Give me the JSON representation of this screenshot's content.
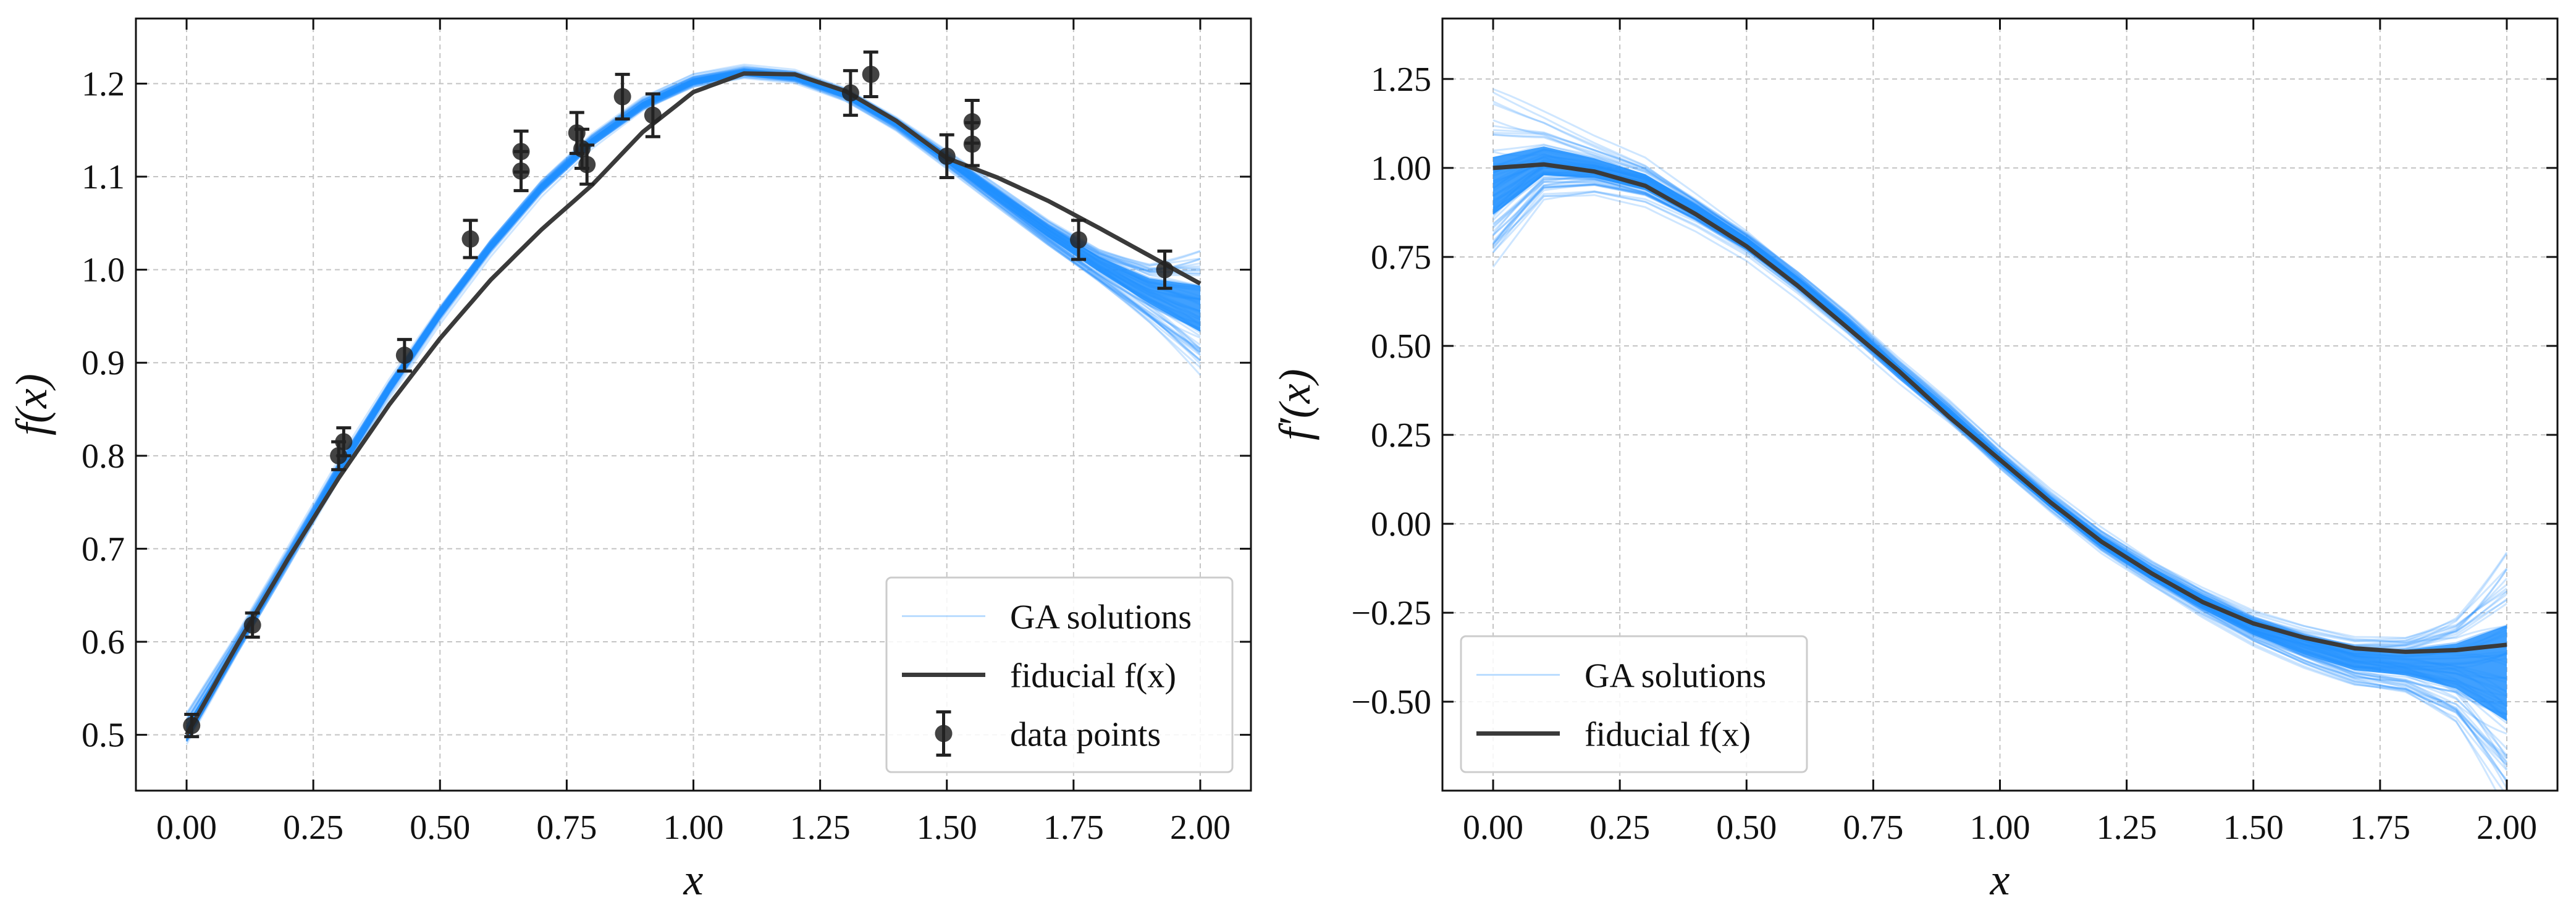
{
  "chart_data": [
    {
      "id": "left",
      "type": "line+scatter",
      "xlabel": "x",
      "ylabel": "f(x)",
      "xlim": [
        -0.1,
        2.1
      ],
      "ylim": [
        0.44,
        1.27
      ],
      "xticks": [
        0.0,
        0.25,
        0.5,
        0.75,
        1.0,
        1.25,
        1.5,
        1.75,
        2.0
      ],
      "xtick_labels": [
        "0.00",
        "0.25",
        "0.50",
        "0.75",
        "1.00",
        "1.25",
        "1.50",
        "1.75",
        "2.00"
      ],
      "yticks": [
        0.5,
        0.6,
        0.7,
        0.8,
        0.9,
        1.0,
        1.1,
        1.2
      ],
      "ytick_labels": [
        "0.5",
        "0.6",
        "0.7",
        "0.8",
        "0.9",
        "1.0",
        "1.1",
        "1.2"
      ],
      "grid": true,
      "legend_location": "lower-right",
      "legend": [
        {
          "label": "GA solutions",
          "style": "thin-light-blue-line"
        },
        {
          "label": "fiducial f(x)",
          "style": "thick-dark-line"
        },
        {
          "label": "data points",
          "style": "errorbar-marker"
        }
      ],
      "fiducial": {
        "name": "fiducial f(x)",
        "x": [
          0.0,
          0.1,
          0.2,
          0.3,
          0.4,
          0.5,
          0.6,
          0.7,
          0.8,
          0.9,
          1.0,
          1.1,
          1.2,
          1.3,
          1.4,
          1.5,
          1.6,
          1.7,
          1.8,
          1.9,
          2.0
        ],
        "y": [
          0.5,
          0.597,
          0.689,
          0.776,
          0.855,
          0.926,
          0.989,
          1.043,
          1.091,
          1.148,
          1.191,
          1.211,
          1.21,
          1.192,
          1.16,
          1.12,
          1.099,
          1.074,
          1.045,
          1.015,
          0.985
        ]
      },
      "ga_band": {
        "name": "GA solutions",
        "x": [
          0.0,
          0.1,
          0.2,
          0.3,
          0.4,
          0.5,
          0.6,
          0.7,
          0.8,
          0.9,
          1.0,
          1.1,
          1.2,
          1.3,
          1.4,
          1.5,
          1.6,
          1.7,
          1.8,
          1.9,
          2.0
        ],
        "y": [
          0.505,
          0.597,
          0.69,
          0.785,
          0.873,
          0.953,
          1.025,
          1.088,
          1.138,
          1.177,
          1.202,
          1.212,
          1.207,
          1.188,
          1.157,
          1.119,
          1.08,
          1.041,
          1.006,
          0.977,
          0.958
        ],
        "spread": [
          0.012,
          0.008,
          0.008,
          0.008,
          0.008,
          0.008,
          0.008,
          0.008,
          0.008,
          0.008,
          0.008,
          0.008,
          0.008,
          0.008,
          0.008,
          0.01,
          0.012,
          0.014,
          0.018,
          0.03,
          0.055
        ]
      },
      "data_points": {
        "name": "data points",
        "x": [
          0.01,
          0.13,
          0.3,
          0.31,
          0.43,
          0.56,
          0.66,
          0.66,
          0.77,
          0.78,
          0.79,
          0.86,
          0.92,
          1.31,
          1.35,
          1.5,
          1.55,
          1.55,
          1.76,
          1.93
        ],
        "y": [
          0.51,
          0.618,
          0.8,
          0.815,
          0.908,
          1.033,
          1.127,
          1.106,
          1.147,
          1.13,
          1.113,
          1.186,
          1.166,
          1.19,
          1.21,
          1.122,
          1.159,
          1.135,
          1.032,
          1.0
        ],
        "yerr": [
          0.012,
          0.013,
          0.015,
          0.015,
          0.017,
          0.02,
          0.022,
          0.021,
          0.022,
          0.021,
          0.021,
          0.024,
          0.023,
          0.024,
          0.024,
          0.023,
          0.023,
          0.023,
          0.021,
          0.02
        ]
      }
    },
    {
      "id": "right",
      "type": "line",
      "xlabel": "x",
      "ylabel": "f′(x)",
      "xlim": [
        -0.1,
        2.1
      ],
      "ylim": [
        -0.75,
        1.42
      ],
      "xticks": [
        0.0,
        0.25,
        0.5,
        0.75,
        1.0,
        1.25,
        1.5,
        1.75,
        2.0
      ],
      "xtick_labels": [
        "0.00",
        "0.25",
        "0.50",
        "0.75",
        "1.00",
        "1.25",
        "1.50",
        "1.75",
        "2.00"
      ],
      "yticks": [
        -0.5,
        -0.25,
        0.0,
        0.25,
        0.5,
        0.75,
        1.0,
        1.25
      ],
      "ytick_labels": [
        "−0.50",
        "−0.25",
        "0.00",
        "0.25",
        "0.50",
        "0.75",
        "1.00",
        "1.25"
      ],
      "grid": true,
      "legend_location": "lower-left",
      "legend": [
        {
          "label": "GA solutions",
          "style": "thin-light-blue-line"
        },
        {
          "label": "fiducial f(x)",
          "style": "thick-dark-line"
        }
      ],
      "fiducial": {
        "name": "fiducial f(x)",
        "x": [
          0.0,
          0.1,
          0.2,
          0.3,
          0.4,
          0.5,
          0.6,
          0.7,
          0.8,
          0.9,
          1.0,
          1.1,
          1.2,
          1.3,
          1.4,
          1.5,
          1.6,
          1.7,
          1.8,
          1.9,
          2.0
        ],
        "y": [
          1.0,
          1.01,
          0.99,
          0.95,
          0.87,
          0.78,
          0.67,
          0.55,
          0.43,
          0.3,
          0.18,
          0.06,
          -0.05,
          -0.14,
          -0.22,
          -0.28,
          -0.32,
          -0.35,
          -0.36,
          -0.355,
          -0.34
        ]
      },
      "ga_band": {
        "name": "GA solutions",
        "x": [
          0.0,
          0.1,
          0.2,
          0.3,
          0.4,
          0.5,
          0.6,
          0.7,
          0.8,
          0.9,
          1.0,
          1.1,
          1.2,
          1.3,
          1.4,
          1.5,
          1.6,
          1.7,
          1.8,
          1.9,
          2.0
        ],
        "y": [
          0.95,
          1.02,
          1.0,
          0.96,
          0.88,
          0.79,
          0.68,
          0.56,
          0.43,
          0.31,
          0.18,
          0.06,
          -0.05,
          -0.14,
          -0.22,
          -0.29,
          -0.34,
          -0.38,
          -0.39,
          -0.4,
          -0.42
        ],
        "spread": [
          0.18,
          0.09,
          0.06,
          0.05,
          0.04,
          0.035,
          0.035,
          0.035,
          0.035,
          0.035,
          0.035,
          0.035,
          0.04,
          0.04,
          0.045,
          0.05,
          0.06,
          0.07,
          0.08,
          0.14,
          0.3
        ]
      }
    }
  ]
}
